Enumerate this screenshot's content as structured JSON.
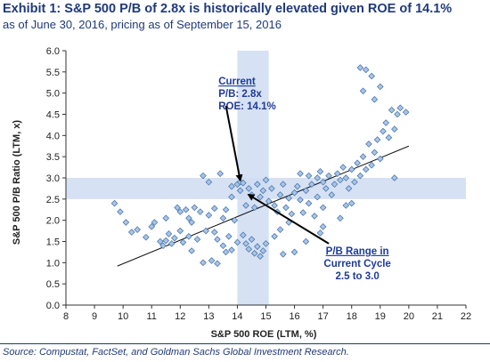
{
  "header": {
    "title": "Exhibit 1: S&P 500 P/B of 2.8x is historically elevated given ROE of 14.1%",
    "subtitle": "as of June 30, 2016, pricing as of September 15, 2016"
  },
  "source": "Source: Compustat, FactSet, and Goldman Sachs Global Investment Research.",
  "colors": {
    "point_fill": "#a9c4e6",
    "point_stroke": "#3f6fa8",
    "band": "#cfdcf2",
    "annotation": "#1f3a9a",
    "rule": "#1f3a7a"
  },
  "chart_data": {
    "type": "scatter",
    "xlabel": "S&P 500 ROE (LTM, %)",
    "ylabel": "S&P 500 P/B Ratio (LTM, x)",
    "xlim": [
      8,
      22
    ],
    "ylim": [
      0.0,
      6.0
    ],
    "x_ticks": [
      "8",
      "9",
      "10",
      "11",
      "12",
      "13",
      "14",
      "15",
      "16",
      "17",
      "18",
      "19",
      "20",
      "21",
      "22"
    ],
    "y_ticks": [
      "0.0",
      "0.5",
      "1.0",
      "1.5",
      "2.0",
      "2.5",
      "3.0",
      "3.5",
      "4.0",
      "4.5",
      "5.0",
      "5.5",
      "6.0"
    ],
    "grid": false,
    "trend_line": {
      "x": [
        9.8,
        20.0
      ],
      "y": [
        0.92,
        3.75
      ]
    },
    "vertical_band": {
      "x": [
        14.0,
        15.1
      ]
    },
    "horizontal_band": {
      "y": [
        2.5,
        3.0
      ]
    },
    "annotations": [
      {
        "lines": [
          "Current",
          "P/B: 2.8x",
          "ROE: 14.1%"
        ],
        "underline_first": true,
        "x": 13.9,
        "y": 5.2,
        "arrow_from": [
          13.6,
          4.7
        ],
        "arrow_to": [
          14.1,
          2.95
        ]
      },
      {
        "lines": [
          "P/B Range in",
          "Current Cycle",
          "2.5 to 3.0"
        ],
        "underline_first": true,
        "x": 18.2,
        "y": 1.2,
        "arrow_from": [
          17.2,
          1.45
        ],
        "arrow_to": [
          14.4,
          2.6
        ]
      }
    ],
    "points": [
      [
        9.7,
        2.4
      ],
      [
        9.9,
        2.2
      ],
      [
        10.1,
        1.95
      ],
      [
        10.3,
        1.72
      ],
      [
        10.8,
        1.6
      ],
      [
        11.1,
        1.95
      ],
      [
        11.3,
        1.5
      ],
      [
        11.4,
        1.4
      ],
      [
        11.5,
        1.52
      ],
      [
        11.5,
        2.05
      ],
      [
        11.6,
        1.68
      ],
      [
        11.7,
        1.45
      ],
      [
        11.8,
        1.58
      ],
      [
        11.9,
        2.3
      ],
      [
        12.0,
        2.2
      ],
      [
        12.0,
        1.75
      ],
      [
        12.1,
        1.48
      ],
      [
        12.2,
        2.25
      ],
      [
        12.3,
        1.62
      ],
      [
        12.3,
        2.05
      ],
      [
        12.4,
        1.95
      ],
      [
        12.5,
        2.3
      ],
      [
        12.6,
        1.55
      ],
      [
        12.7,
        2.2
      ],
      [
        12.8,
        3.05
      ],
      [
        12.9,
        1.75
      ],
      [
        13.0,
        2.9
      ],
      [
        13.0,
        2.12
      ],
      [
        13.1,
        1.05
      ],
      [
        13.2,
        1.72
      ],
      [
        13.2,
        2.28
      ],
      [
        13.3,
        1.55
      ],
      [
        13.4,
        3.1
      ],
      [
        13.5,
        1.4
      ],
      [
        13.5,
        2.05
      ],
      [
        13.6,
        1.25
      ],
      [
        13.6,
        2.25
      ],
      [
        13.7,
        1.62
      ],
      [
        13.8,
        1.3
      ],
      [
        13.8,
        2.8
      ],
      [
        13.8,
        2.55
      ],
      [
        13.9,
        2.0
      ],
      [
        14.0,
        1.48
      ],
      [
        14.0,
        2.85
      ],
      [
        14.1,
        2.9
      ],
      [
        14.1,
        2.7
      ],
      [
        14.2,
        1.65
      ],
      [
        14.2,
        2.88
      ],
      [
        14.3,
        1.45
      ],
      [
        14.3,
        2.35
      ],
      [
        14.4,
        1.32
      ],
      [
        14.4,
        2.75
      ],
      [
        14.5,
        1.55
      ],
      [
        14.5,
        2.6
      ],
      [
        14.6,
        1.22
      ],
      [
        14.6,
        2.3
      ],
      [
        14.7,
        1.38
      ],
      [
        14.7,
        2.85
      ],
      [
        14.8,
        1.15
      ],
      [
        14.8,
        2.55
      ],
      [
        14.9,
        1.28
      ],
      [
        14.9,
        2.7
      ],
      [
        15.0,
        1.45
      ],
      [
        15.0,
        2.95
      ],
      [
        15.1,
        2.45
      ],
      [
        15.2,
        2.75
      ],
      [
        15.3,
        2.35
      ],
      [
        15.3,
        1.62
      ],
      [
        15.4,
        2.2
      ],
      [
        15.5,
        2.6
      ],
      [
        15.5,
        1.78
      ],
      [
        15.6,
        2.85
      ],
      [
        15.7,
        2.3
      ],
      [
        15.8,
        2.52
      ],
      [
        15.8,
        1.95
      ],
      [
        15.9,
        2.15
      ],
      [
        16.0,
        2.65
      ],
      [
        16.0,
        1.25
      ],
      [
        16.1,
        2.8
      ],
      [
        16.2,
        2.48
      ],
      [
        16.2,
        3.1
      ],
      [
        16.3,
        2.18
      ],
      [
        16.4,
        2.7
      ],
      [
        16.5,
        3.05
      ],
      [
        16.5,
        2.4
      ],
      [
        16.6,
        2.85
      ],
      [
        16.7,
        2.1
      ],
      [
        16.8,
        3.0
      ],
      [
        16.8,
        2.55
      ],
      [
        16.9,
        3.15
      ],
      [
        17.0,
        2.9
      ],
      [
        17.0,
        2.3
      ],
      [
        17.1,
        2.75
      ],
      [
        17.2,
        3.05
      ],
      [
        17.3,
        2.6
      ],
      [
        17.4,
        2.85
      ],
      [
        17.5,
        3.1
      ],
      [
        17.6,
        2.95
      ],
      [
        17.7,
        3.25
      ],
      [
        17.8,
        3.0
      ],
      [
        17.9,
        2.75
      ],
      [
        18.0,
        3.2
      ],
      [
        18.1,
        2.9
      ],
      [
        18.2,
        3.35
      ],
      [
        18.3,
        3.05
      ],
      [
        18.4,
        3.5
      ],
      [
        18.5,
        3.2
      ],
      [
        18.6,
        3.8
      ],
      [
        18.7,
        3.3
      ],
      [
        18.8,
        3.6
      ],
      [
        18.9,
        3.9
      ],
      [
        19.0,
        3.45
      ],
      [
        19.1,
        4.1
      ],
      [
        19.2,
        4.3
      ],
      [
        19.3,
        3.95
      ],
      [
        19.4,
        4.6
      ],
      [
        19.5,
        4.15
      ],
      [
        19.6,
        4.5
      ],
      [
        19.7,
        4.65
      ],
      [
        19.9,
        4.55
      ],
      [
        18.3,
        5.6
      ],
      [
        18.5,
        5.55
      ],
      [
        18.7,
        5.4
      ],
      [
        18.4,
        5.05
      ],
      [
        18.8,
        4.85
      ],
      [
        19.0,
        5.15
      ],
      [
        17.0,
        1.85
      ],
      [
        16.4,
        1.5
      ],
      [
        15.6,
        1.2
      ],
      [
        17.6,
        2.05
      ],
      [
        18.0,
        2.4
      ],
      [
        12.8,
        1.0
      ],
      [
        13.3,
        0.98
      ],
      [
        11.0,
        1.85
      ],
      [
        10.5,
        1.78
      ],
      [
        12.4,
        1.28
      ],
      [
        16.9,
        1.7
      ],
      [
        17.8,
        2.35
      ],
      [
        19.5,
        3.0
      ]
    ]
  }
}
